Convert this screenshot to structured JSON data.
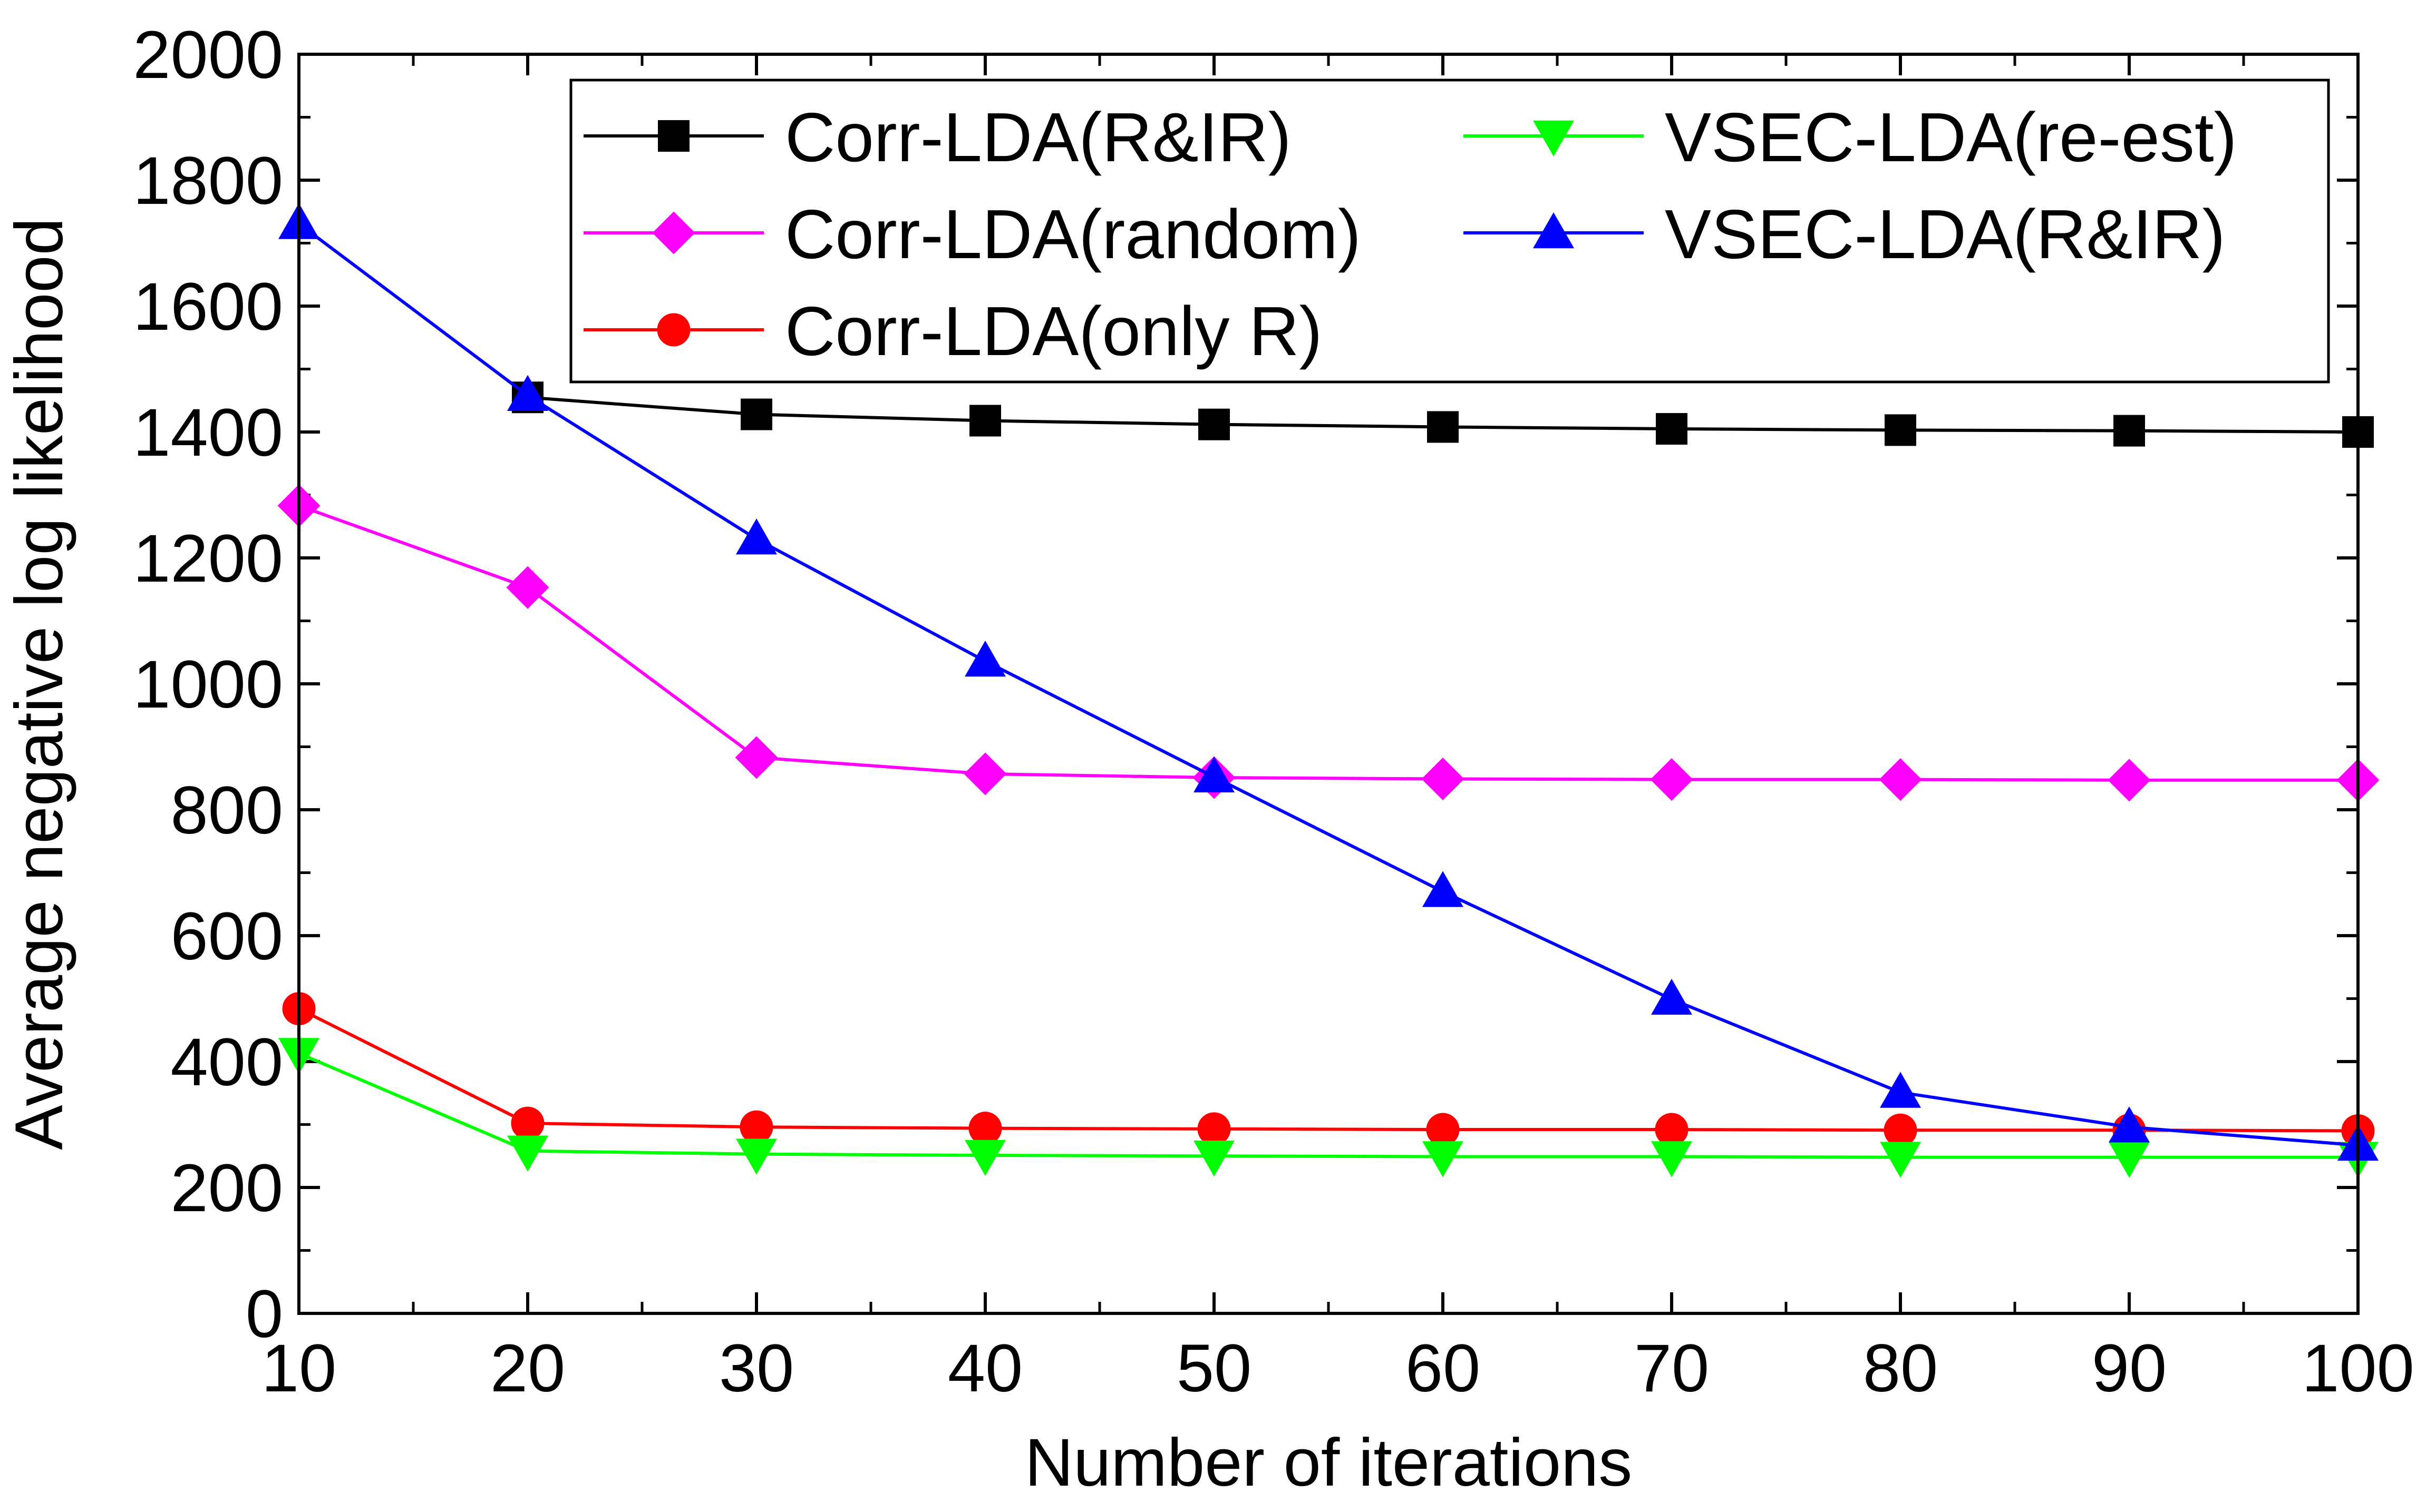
{
  "chart_data": {
    "type": "line",
    "title": "",
    "xlabel": "Number of iterations",
    "ylabel": "Average negative log likelihood",
    "xlim": [
      10,
      100
    ],
    "ylim": [
      0,
      2000
    ],
    "x": [
      10,
      20,
      30,
      40,
      50,
      60,
      70,
      80,
      90,
      100
    ],
    "xticks": [
      "10",
      "20",
      "30",
      "40",
      "50",
      "60",
      "70",
      "80",
      "90",
      "100"
    ],
    "yticks": [
      "0",
      "200",
      "400",
      "600",
      "800",
      "1000",
      "1200",
      "1400",
      "1600",
      "1800",
      "2000"
    ],
    "grid": false,
    "legend_position": "top-right",
    "series": [
      {
        "name": "Corr-LDA(R&IR)",
        "color": "#000000",
        "marker": "square",
        "x": [
          20,
          30,
          40,
          50,
          60,
          70,
          80,
          90,
          100
        ],
        "values": [
          1455,
          1428,
          1418,
          1412,
          1408,
          1405,
          1403,
          1402,
          1400
        ]
      },
      {
        "name": "Corr-LDA(random)",
        "color": "#ff00ff",
        "marker": "diamond",
        "x": [
          10,
          20,
          30,
          40,
          50,
          60,
          70,
          80,
          90,
          100
        ],
        "values": [
          1283,
          1153,
          883,
          857,
          851,
          849,
          848,
          848,
          847,
          847
        ]
      },
      {
        "name": "Corr-LDA(only R)",
        "color": "#ff0000",
        "marker": "circle",
        "x": [
          10,
          20,
          30,
          40,
          50,
          60,
          70,
          80,
          90,
          100
        ],
        "values": [
          484,
          302,
          296,
          294,
          293,
          292,
          292,
          291,
          291,
          290
        ]
      },
      {
        "name": "VSEC-LDA(re-est)",
        "color": "#00ff00",
        "marker": "triangle-down",
        "x": [
          10,
          20,
          30,
          40,
          50,
          60,
          70,
          80,
          90,
          100
        ],
        "values": [
          413,
          258,
          253,
          251,
          250,
          249,
          249,
          248,
          248,
          248
        ]
      },
      {
        "name": "VSEC-LDA(R&IR)",
        "color": "#0000ff",
        "marker": "triangle-up",
        "x": [
          10,
          20,
          30,
          40,
          50,
          60,
          70,
          80,
          90,
          100
        ],
        "values": [
          1731,
          1458,
          1230,
          1036,
          852,
          670,
          499,
          351,
          296,
          267
        ]
      }
    ]
  }
}
